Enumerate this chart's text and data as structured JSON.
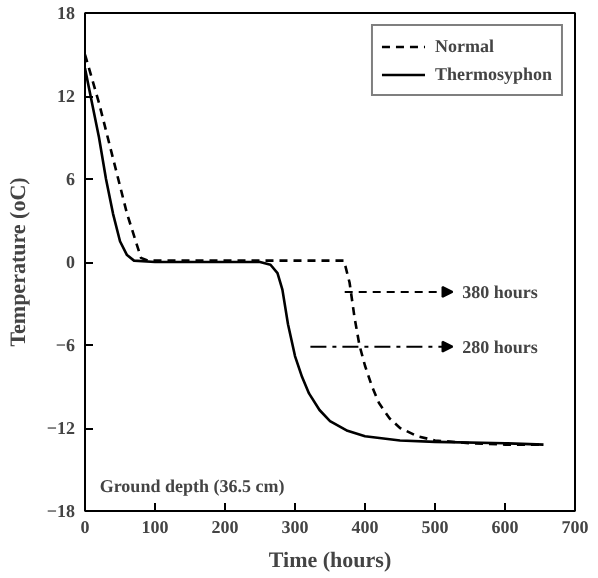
{
  "chart_data": {
    "type": "line",
    "xlabel": "Time (hours)",
    "ylabel": "Temperature (oC)",
    "xlim": [
      0,
      700
    ],
    "xticks": [
      0,
      100,
      200,
      300,
      400,
      500,
      600,
      700
    ],
    "ylim": [
      -18,
      18
    ],
    "yticks": [
      -18,
      -12,
      -6,
      0,
      6,
      12,
      18
    ],
    "grid": false,
    "legend": "top right",
    "series": [
      {
        "name": "Normal",
        "color": "#000000",
        "line_style": "dashed",
        "x": [
          0,
          20,
          40,
          60,
          80,
          90,
          150,
          250,
          350,
          370,
          378,
          385,
          392,
          400,
          410,
          420,
          435,
          450,
          475,
          500,
          550,
          600,
          655
        ],
        "values": [
          15,
          11.5,
          7.5,
          3.5,
          0.3,
          0.1,
          0.1,
          0.1,
          0.1,
          0.1,
          -1.5,
          -4,
          -6,
          -7.5,
          -9,
          -10.2,
          -11.3,
          -12,
          -12.6,
          -12.9,
          -13.1,
          -13.2,
          -13.2
        ]
      },
      {
        "name": "Thermosyphon",
        "color": "#000000",
        "line_style": "solid",
        "x": [
          0,
          10,
          20,
          30,
          40,
          50,
          60,
          70,
          100,
          150,
          200,
          250,
          265,
          275,
          282,
          290,
          300,
          310,
          320,
          335,
          350,
          375,
          400,
          450,
          500,
          600,
          655
        ],
        "values": [
          14,
          11.5,
          9,
          6,
          3.5,
          1.5,
          0.5,
          0.1,
          0,
          0,
          0,
          0,
          -0.2,
          -0.8,
          -2,
          -4.5,
          -6.8,
          -8.3,
          -9.5,
          -10.7,
          -11.5,
          -12.2,
          -12.6,
          -12.9,
          -13,
          -13.1,
          -13.2
        ]
      }
    ],
    "annotations": [
      "380 hours",
      "280 hours",
      "Ground depth (36.5 cm)"
    ]
  }
}
